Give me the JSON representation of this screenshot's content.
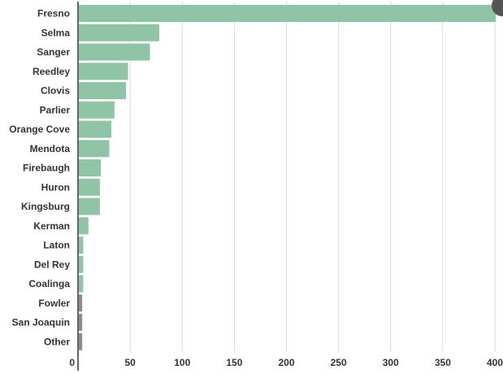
{
  "chart_data": {
    "type": "bar",
    "orientation": "horizontal",
    "categories": [
      "Fresno",
      "Selma",
      "Sanger",
      "Reedley",
      "Clovis",
      "Parlier",
      "Orange Cove",
      "Mendota",
      "Firebaugh",
      "Huron",
      "Kingsburg",
      "Kerman",
      "Laton",
      "Del Rey",
      "Coalinga",
      "Fowler",
      "San Joaquin",
      "Other"
    ],
    "values": [
      401,
      78,
      69,
      48,
      46,
      35,
      32,
      30,
      22,
      21,
      21,
      10,
      5,
      5,
      5,
      4,
      4,
      4
    ],
    "bar_colors": [
      "#8fc4a6",
      "#8fc4a6",
      "#8fc4a6",
      "#8fc4a6",
      "#8fc4a6",
      "#8fc4a6",
      "#8fc4a6",
      "#8fc4a6",
      "#8fc4a6",
      "#8fc4a6",
      "#8fc4a6",
      "#8fc4a6",
      "#8fc4a6",
      "#8fc4a6",
      "#8fc4a6",
      "#8c8c8c",
      "#8c8c8c",
      "#8c8c8c"
    ],
    "xticks": [
      "0",
      "50",
      "100",
      "150",
      "200",
      "250",
      "300",
      "350",
      "400"
    ],
    "xlim": [
      0,
      400
    ],
    "grid": true,
    "title": "",
    "xlabel": "",
    "ylabel": ""
  }
}
